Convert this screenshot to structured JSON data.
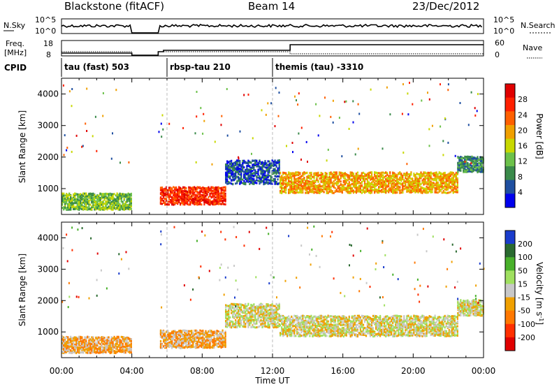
{
  "header": {
    "radar": "Blackstone (fitACF)",
    "beam": "Beam 14",
    "date": "23/Dec/2012"
  },
  "param_panels": {
    "nsky_label": "N.Sky",
    "nsearch_label": "N.Search",
    "noise_ticks": [
      "10^5",
      "10^0"
    ],
    "freq_label_1": "Freq.",
    "freq_label_2": "[MHz]",
    "freq_ticks": [
      "18",
      "8"
    ],
    "nave_label": "Nave",
    "nave_ticks": [
      "60",
      "0"
    ],
    "cpid_label": "CPID"
  },
  "cpid_segments": [
    {
      "label": "tau (fast) 503",
      "start_hour": 0
    },
    {
      "label": "rbsp-tau 210",
      "start_hour": 6
    },
    {
      "label": "themis (tau) -3310",
      "start_hour": 12
    }
  ],
  "colors": {
    "power": [
      "#0000ee",
      "#1f4fa0",
      "#3a8a4a",
      "#6cc14a",
      "#c8d800",
      "#f0a000",
      "#ff6000",
      "#ff2000",
      "#e00000"
    ],
    "velocity": [
      "#1a3ccc",
      "#2a6a30",
      "#48b02a",
      "#a0e060",
      "#c8c8c8",
      "#f0a000",
      "#ff7800",
      "#ff3000",
      "#e00000"
    ]
  },
  "chart_data": {
    "type": "heatmap",
    "x_ticks": [
      "00:00",
      "04:00",
      "08:00",
      "12:00",
      "16:00",
      "20:00",
      "00:00"
    ],
    "xlabel": "Time UT",
    "xlim_hours": [
      0,
      24
    ],
    "data_gap_hours": [
      4,
      5.5
    ],
    "power_panel": {
      "ylabel": "Slant Range [km]",
      "y_ticks": [
        "4000",
        "3000",
        "2000",
        "1000"
      ],
      "y_tick_values": [
        4000,
        3000,
        2000,
        1000
      ],
      "ylim": [
        180,
        4500
      ],
      "colorbar_label": "Power [dB]",
      "colorbar_ticks": [
        "28",
        "24",
        "20",
        "16",
        "12",
        "8",
        "4"
      ],
      "colorbar_range": [
        0,
        32
      ]
    },
    "velocity_panel": {
      "ylabel": "Slant Range [km]",
      "y_ticks": [
        "4000",
        "3000",
        "2000",
        "1000"
      ],
      "y_tick_values": [
        4000,
        3000,
        2000,
        1000
      ],
      "ylim": [
        180,
        4500
      ],
      "colorbar_label": "Velocity [m s^-1]",
      "colorbar_ticks": [
        "200",
        "100",
        "50",
        "15",
        "-15",
        "-50",
        "-100",
        "-200"
      ]
    },
    "echo_regions": [
      {
        "t": [
          0.0,
          4.0
        ],
        "r_center": 620,
        "r_halfwidth": 260,
        "power_level": 3,
        "vel_level": 5
      },
      {
        "t": [
          5.6,
          9.3
        ],
        "r_center": 800,
        "r_halfwidth": 280,
        "power_level": 7,
        "vel_level": 5
      },
      {
        "t": [
          9.3,
          12.4
        ],
        "r_center": 1550,
        "r_halfwidth": 380,
        "power_level": 1,
        "vel_level": 4
      },
      {
        "t": [
          12.4,
          22.5
        ],
        "r_center": 1220,
        "r_halfwidth": 330,
        "power_level": 5,
        "vel_level": 4
      },
      {
        "t": [
          22.5,
          24.0
        ],
        "r_center": 1800,
        "r_halfwidth": 250,
        "power_level": 2,
        "vel_level": 4
      }
    ]
  }
}
